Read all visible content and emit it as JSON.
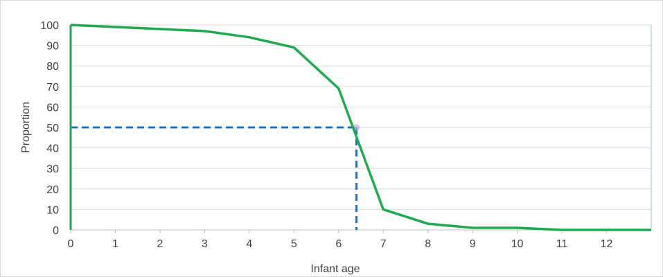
{
  "chart_data": {
    "type": "line",
    "xlabel": "Infant age",
    "ylabel": "Proportion",
    "xlim": [
      0,
      13
    ],
    "ylim": [
      0,
      100
    ],
    "x_ticks": [
      0,
      1,
      2,
      3,
      4,
      5,
      6,
      7,
      8,
      9,
      10,
      11,
      12
    ],
    "y_ticks": [
      0,
      10,
      20,
      30,
      40,
      50,
      60,
      70,
      80,
      90,
      100
    ],
    "grid": "horizontal",
    "series": [
      {
        "color": "#1faa4f",
        "points": [
          {
            "x": 0,
            "y": 100
          },
          {
            "x": 1,
            "y": 99
          },
          {
            "x": 2,
            "y": 98
          },
          {
            "x": 3,
            "y": 97
          },
          {
            "x": 4,
            "y": 94
          },
          {
            "x": 5,
            "y": 89
          },
          {
            "x": 6,
            "y": 69
          },
          {
            "x": 7,
            "y": 10
          },
          {
            "x": 8,
            "y": 3
          },
          {
            "x": 9,
            "y": 1
          },
          {
            "x": 10,
            "y": 1
          },
          {
            "x": 11,
            "y": 0
          },
          {
            "x": 12,
            "y": 0
          },
          {
            "x": 13,
            "y": 0
          }
        ]
      }
    ],
    "reference": {
      "color": "#1f6fbf",
      "style": "dashed",
      "y_level": 50,
      "x_at_level": 6.4
    }
  }
}
